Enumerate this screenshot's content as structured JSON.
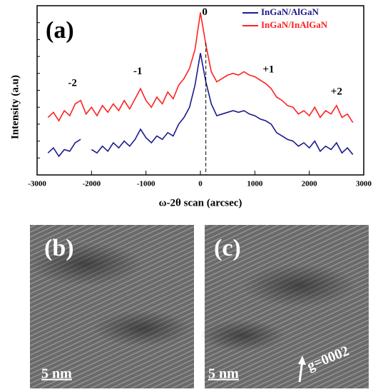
{
  "chart_data": {
    "type": "line",
    "title": "(a)",
    "x_label": "ω-2θ scan (arcsec)",
    "y_label": "Intensity (a.u)",
    "x": [
      -2800,
      -2700,
      -2600,
      -2500,
      -2400,
      -2300,
      -2200,
      -2100,
      -2000,
      -1900,
      -1800,
      -1700,
      -1600,
      -1500,
      -1400,
      -1300,
      -1200,
      -1100,
      -1000,
      -900,
      -800,
      -700,
      -600,
      -500,
      -400,
      -300,
      -200,
      -100,
      0,
      100,
      200,
      300,
      400,
      500,
      600,
      700,
      800,
      900,
      1000,
      1100,
      1200,
      1300,
      1400,
      1500,
      1600,
      1700,
      1800,
      1900,
      2000,
      2100,
      2200,
      2300,
      2400,
      2500,
      2600,
      2700,
      2800
    ],
    "series": [
      {
        "name": "InGaN/AlGaN",
        "color": "#1a1a8c",
        "values": [
          13,
          16,
          11,
          15,
          14,
          19,
          21,
          null,
          15,
          13,
          17,
          14,
          19,
          16,
          20,
          17,
          21,
          27,
          22,
          19,
          23,
          21,
          25,
          23,
          30,
          34,
          40,
          53,
          72,
          55,
          42,
          35,
          36,
          37,
          38,
          37,
          38,
          36,
          35,
          33,
          32,
          30,
          25,
          23,
          21,
          20,
          17,
          19,
          16,
          20,
          14,
          17,
          15,
          19,
          13,
          16,
          12
        ]
      },
      {
        "name": "InGaN/InAlGaN",
        "color": "#ff2020",
        "values": [
          34,
          37,
          32,
          38,
          35,
          42,
          44,
          36,
          40,
          35,
          41,
          37,
          42,
          38,
          44,
          39,
          45,
          51,
          44,
          40,
          46,
          42,
          49,
          45,
          53,
          57,
          63,
          74,
          96,
          77,
          61,
          55,
          57,
          59,
          60,
          59,
          61,
          59,
          58,
          56,
          54,
          51,
          46,
          44,
          41,
          40,
          36,
          38,
          35,
          40,
          34,
          38,
          36,
          41,
          34,
          36,
          31
        ]
      }
    ],
    "annotations": [
      {
        "text": "-2",
        "x": -2350,
        "y": 54
      },
      {
        "text": "-1",
        "x": -1150,
        "y": 61
      },
      {
        "text": "0",
        "x": 80,
        "y": 96
      },
      {
        "text": "+1",
        "x": 1250,
        "y": 62
      },
      {
        "text": "+2",
        "x": 2500,
        "y": 49
      }
    ],
    "vline": 100,
    "xlim": [
      -3000,
      3000
    ],
    "ylim": [
      0,
      100
    ],
    "xticks": [
      -3000,
      -2000,
      -1000,
      0,
      1000,
      2000,
      3000
    ],
    "legend": "upper right"
  },
  "panels": [
    {
      "label": "(b)",
      "scale_bar": "5 nm"
    },
    {
      "label": "(c)",
      "scale_bar": "5 nm",
      "vector": "g=0002"
    }
  ]
}
